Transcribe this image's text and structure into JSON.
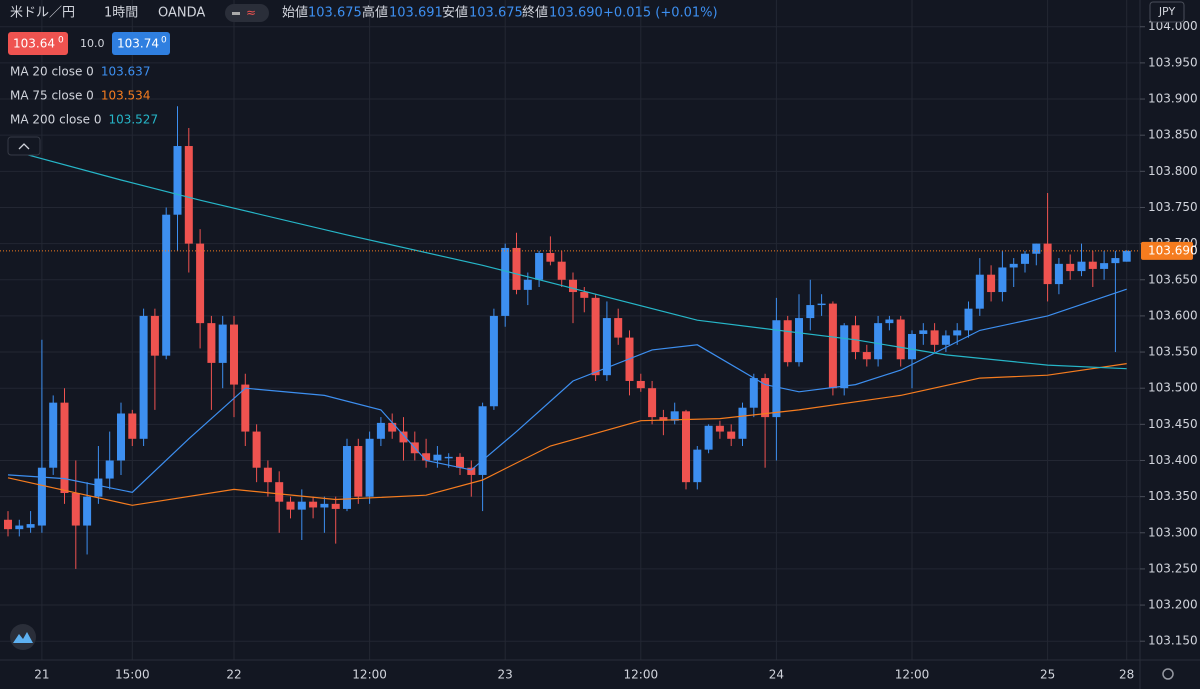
{
  "header": {
    "symbol": "米ドル／円",
    "interval": "1時間",
    "source": "OANDA",
    "open_label": "始値",
    "open": "103.675",
    "high_label": "高値",
    "high": "103.691",
    "low_label": "安値",
    "low": "103.675",
    "close_label": "終値",
    "close": "103.690",
    "change": "+0.015 (+0.01%)"
  },
  "quote": {
    "bid": "103.64",
    "bid_sup": "0",
    "spread": "10.0",
    "ask": "103.74",
    "ask_sup": "0"
  },
  "chart_data": {
    "type": "candlestick",
    "y_unit": "JPY",
    "up_color": "#3d8ff0",
    "down_color": "#ef5350",
    "categories": [
      null,
      null,
      null,
      "21",
      null,
      null,
      null,
      null,
      null,
      null,
      null,
      "15:00",
      null,
      null,
      null,
      null,
      null,
      null,
      null,
      null,
      "22",
      null,
      null,
      null,
      null,
      null,
      null,
      null,
      null,
      null,
      null,
      null,
      "12:00",
      null,
      null,
      null,
      null,
      null,
      null,
      null,
      null,
      null,
      null,
      null,
      "23",
      null,
      null,
      null,
      null,
      null,
      null,
      null,
      null,
      null,
      null,
      null,
      "12:00",
      null,
      null,
      null,
      null,
      null,
      null,
      null,
      null,
      null,
      null,
      null,
      "24",
      null,
      null,
      null,
      null,
      null,
      null,
      null,
      null,
      null,
      null,
      null,
      "12:00",
      null,
      null,
      null,
      null,
      null,
      null,
      null,
      null,
      null,
      null,
      null,
      "25",
      null,
      null,
      null,
      null,
      null,
      null,
      "28"
    ],
    "open": [
      103.318,
      103.305,
      103.307,
      103.31,
      103.39,
      103.48,
      103.355,
      103.31,
      103.35,
      103.375,
      103.4,
      103.465,
      103.43,
      103.6,
      103.545,
      103.74,
      103.835,
      103.7,
      103.59,
      103.535,
      103.588,
      103.505,
      103.44,
      103.39,
      103.37,
      103.343,
      103.332,
      103.343,
      103.335,
      103.34,
      103.333,
      103.42,
      103.35,
      103.43,
      103.452,
      103.44,
      103.425,
      103.41,
      103.4,
      103.403,
      103.405,
      103.39,
      103.38,
      103.475,
      103.6,
      103.694,
      103.636,
      103.65,
      103.687,
      103.675,
      103.65,
      103.633,
      103.625,
      103.518,
      103.597,
      103.57,
      103.51,
      103.5,
      103.46,
      103.455,
      103.468,
      103.37,
      103.415,
      103.448,
      103.44,
      103.43,
      103.473,
      103.514,
      103.46,
      103.594,
      103.536,
      103.597,
      103.615,
      103.617,
      103.5,
      103.587,
      103.55,
      103.54,
      103.59,
      103.595,
      103.54,
      103.575,
      103.58,
      103.56,
      103.573,
      103.58,
      103.61,
      103.657,
      103.633,
      103.667,
      103.672,
      103.686,
      103.7,
      103.644,
      103.672,
      103.662,
      103.675,
      103.665,
      103.673,
      103.675
    ],
    "high": [
      103.33,
      103.318,
      103.33,
      103.567,
      103.49,
      103.5,
      103.4,
      103.37,
      103.42,
      103.44,
      103.48,
      103.47,
      103.61,
      103.61,
      103.75,
      103.89,
      103.86,
      103.72,
      103.6,
      103.6,
      103.6,
      103.52,
      103.45,
      103.4,
      103.385,
      103.35,
      103.36,
      103.35,
      103.35,
      103.35,
      103.43,
      103.43,
      103.44,
      103.46,
      103.465,
      103.46,
      103.44,
      103.43,
      103.42,
      103.41,
      103.41,
      103.4,
      103.48,
      103.61,
      103.7,
      103.715,
      103.66,
      103.69,
      103.71,
      103.69,
      103.66,
      103.64,
      103.63,
      103.62,
      103.61,
      103.58,
      103.52,
      103.51,
      103.47,
      103.48,
      103.47,
      103.42,
      103.45,
      103.455,
      103.45,
      103.48,
      103.52,
      103.52,
      103.625,
      103.6,
      103.63,
      103.65,
      103.63,
      103.62,
      103.59,
      103.6,
      103.56,
      103.6,
      103.6,
      103.6,
      103.58,
      103.59,
      103.59,
      103.58,
      103.59,
      103.62,
      103.68,
      103.67,
      103.69,
      103.68,
      103.69,
      103.7,
      103.77,
      103.68,
      103.685,
      103.7,
      103.69,
      103.69,
      103.69,
      103.691
    ],
    "low": [
      103.295,
      103.295,
      103.3,
      103.3,
      103.38,
      103.34,
      103.25,
      103.27,
      103.34,
      103.36,
      103.38,
      103.42,
      103.42,
      103.47,
      103.54,
      103.69,
      103.66,
      103.555,
      103.47,
      103.5,
      103.46,
      103.42,
      103.37,
      103.35,
      103.3,
      103.32,
      103.29,
      103.32,
      103.3,
      103.285,
      103.33,
      103.34,
      103.34,
      103.42,
      103.43,
      103.4,
      103.4,
      103.39,
      103.39,
      103.39,
      103.38,
      103.35,
      103.33,
      103.47,
      103.585,
      103.63,
      103.615,
      103.64,
      103.67,
      103.64,
      103.59,
      103.605,
      103.51,
      103.51,
      103.56,
      103.49,
      103.495,
      103.45,
      103.435,
      103.45,
      103.36,
      103.36,
      103.41,
      103.43,
      103.42,
      103.42,
      103.46,
      103.39,
      103.4,
      103.53,
      103.53,
      103.58,
      103.6,
      103.49,
      103.49,
      103.54,
      103.53,
      103.53,
      103.58,
      103.53,
      103.5,
      103.56,
      103.55,
      103.55,
      103.56,
      103.57,
      103.6,
      103.62,
      103.62,
      103.64,
      103.66,
      103.67,
      103.62,
      103.63,
      103.65,
      103.655,
      103.64,
      103.65,
      103.55,
      103.675
    ],
    "close": [
      103.305,
      103.31,
      103.312,
      103.39,
      103.48,
      103.355,
      103.31,
      103.35,
      103.375,
      103.4,
      103.465,
      103.43,
      103.6,
      103.545,
      103.74,
      103.835,
      103.7,
      103.59,
      103.535,
      103.588,
      103.505,
      103.44,
      103.39,
      103.37,
      103.343,
      103.332,
      103.343,
      103.335,
      103.34,
      103.333,
      103.42,
      103.35,
      103.43,
      103.452,
      103.44,
      103.425,
      103.41,
      103.4,
      103.408,
      103.405,
      103.39,
      103.38,
      103.475,
      103.6,
      103.694,
      103.636,
      103.65,
      103.687,
      103.675,
      103.65,
      103.633,
      103.625,
      103.518,
      103.597,
      103.57,
      103.51,
      103.5,
      103.46,
      103.455,
      103.468,
      103.37,
      103.415,
      103.448,
      103.44,
      103.43,
      103.473,
      103.514,
      103.46,
      103.594,
      103.536,
      103.597,
      103.615,
      103.617,
      103.5,
      103.587,
      103.55,
      103.54,
      103.59,
      103.595,
      103.54,
      103.575,
      103.58,
      103.56,
      103.573,
      103.58,
      103.61,
      103.657,
      103.633,
      103.667,
      103.672,
      103.686,
      103.7,
      103.644,
      103.672,
      103.662,
      103.675,
      103.665,
      103.673,
      103.68,
      103.69
    ],
    "series": [
      {
        "name": "MA 20 close 0",
        "color": "#3d8ff0",
        "value_label": "103.637",
        "x": [
          0,
          5,
          11,
          16,
          21,
          28,
          33,
          37,
          41,
          45,
          50,
          57,
          61,
          67,
          70,
          75,
          79,
          86,
          92,
          99
        ],
        "values": [
          103.38,
          103.375,
          103.356,
          103.43,
          103.5,
          103.49,
          103.47,
          103.4,
          103.387,
          103.44,
          103.51,
          103.553,
          103.56,
          103.505,
          103.495,
          103.505,
          103.525,
          103.58,
          103.6,
          103.637
        ]
      },
      {
        "name": "MA 75 close 0",
        "color": "#f57c1f",
        "value_label": "103.534",
        "x": [
          0,
          11,
          20,
          29,
          37,
          42,
          48,
          56,
          63,
          70,
          79,
          86,
          92,
          99
        ],
        "values": [
          103.376,
          103.338,
          103.36,
          103.346,
          103.352,
          103.373,
          103.42,
          103.455,
          103.458,
          103.47,
          103.49,
          103.514,
          103.518,
          103.534
        ]
      },
      {
        "name": "MA 200 close 0",
        "color": "#26b6c8",
        "value_label": "103.527",
        "x": [
          0,
          10,
          17,
          30,
          42,
          52,
          61,
          75,
          83,
          92,
          99
        ],
        "values": [
          103.83,
          103.788,
          103.76,
          103.712,
          103.67,
          103.63,
          103.594,
          103.567,
          103.546,
          103.532,
          103.527
        ]
      }
    ],
    "last_price": 103.69,
    "last_price_label": "103.690",
    "last_price_color": "#f57c1f",
    "ylim": [
      103.124,
      104.037
    ],
    "yticks": [
      {
        "value": 104.0,
        "label": "104.000"
      },
      {
        "value": 103.95,
        "label": "103.950"
      },
      {
        "value": 103.9,
        "label": "103.900"
      },
      {
        "value": 103.85,
        "label": "103.850"
      },
      {
        "value": 103.8,
        "label": "103.800"
      },
      {
        "value": 103.75,
        "label": "103.750"
      },
      {
        "value": 103.7,
        "label": "103.700"
      },
      {
        "value": 103.65,
        "label": "103.650"
      },
      {
        "value": 103.6,
        "label": "103.600"
      },
      {
        "value": 103.55,
        "label": "103.550"
      },
      {
        "value": 103.5,
        "label": "103.500"
      },
      {
        "value": 103.45,
        "label": "103.450"
      },
      {
        "value": 103.4,
        "label": "103.400"
      },
      {
        "value": 103.35,
        "label": "103.350"
      },
      {
        "value": 103.3,
        "label": "103.300"
      },
      {
        "value": 103.25,
        "label": "103.250"
      },
      {
        "value": 103.2,
        "label": "103.200"
      },
      {
        "value": 103.15,
        "label": "103.150"
      }
    ],
    "grid": true
  }
}
